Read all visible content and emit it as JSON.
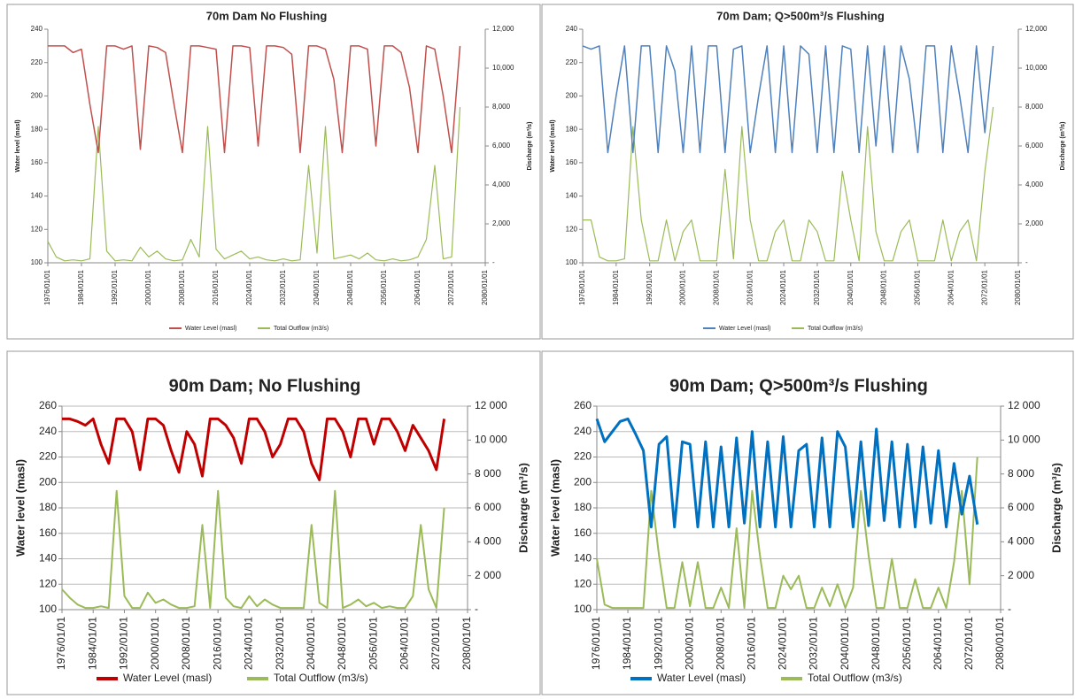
{
  "chart_data": [
    {
      "type": "line",
      "title": "70m Dam No Flushing",
      "y_label": "Water level (masl)",
      "y2_label": "Discharge (m³/s)",
      "grid": false,
      "x": [
        1976,
        1978,
        1980,
        1982,
        1984,
        1986,
        1988,
        1990,
        1992,
        1994,
        1996,
        1998,
        2000,
        2002,
        2004,
        2006,
        2008,
        2010,
        2012,
        2014,
        2016,
        2018,
        2020,
        2022,
        2024,
        2026,
        2028,
        2030,
        2032,
        2034,
        2036,
        2038,
        2040,
        2042,
        2044,
        2046,
        2048,
        2050,
        2052,
        2054,
        2056,
        2058,
        2060,
        2062,
        2064,
        2066,
        2068,
        2070,
        2072,
        2074
      ],
      "xlim": [
        1976,
        2080
      ],
      "xticks": [
        {
          "value": 1976,
          "label": "1976/01/01"
        },
        {
          "value": 1984,
          "label": "1984/01/01"
        },
        {
          "value": 1992,
          "label": "1992/01/01"
        },
        {
          "value": 2000,
          "label": "2000/01/01"
        },
        {
          "value": 2008,
          "label": "2008/01/01"
        },
        {
          "value": 2016,
          "label": "2016/01/01"
        },
        {
          "value": 2024,
          "label": "2024/01/01"
        },
        {
          "value": 2032,
          "label": "2032/01/01"
        },
        {
          "value": 2040,
          "label": "2040/01/01"
        },
        {
          "value": 2048,
          "label": "2048/01/01"
        },
        {
          "value": 2056,
          "label": "2056/01/01"
        },
        {
          "value": 2064,
          "label": "2064/01/01"
        },
        {
          "value": 2072,
          "label": "2072/01/01"
        },
        {
          "value": 2080,
          "label": "2080/01/01"
        }
      ],
      "ylim": [
        100,
        240
      ],
      "yticks": [
        100,
        120,
        140,
        160,
        180,
        200,
        220,
        240
      ],
      "y2lim": [
        0,
        12000
      ],
      "y2ticks": [
        {
          "value": 0,
          "label": "-"
        },
        {
          "value": 2000,
          "label": "2,000"
        },
        {
          "value": 4000,
          "label": "4,000"
        },
        {
          "value": 6000,
          "label": "6,000"
        },
        {
          "value": 8000,
          "label": "8,000"
        },
        {
          "value": 10000,
          "label": "10,000"
        },
        {
          "value": 12000,
          "label": "12,000"
        }
      ],
      "series": [
        {
          "name": "Water Level (masl)",
          "color": "#c0504d",
          "values": [
            230,
            230,
            230,
            226,
            228,
            195,
            166,
            230,
            230,
            228,
            230,
            168,
            230,
            229,
            226,
            195,
            166,
            230,
            230,
            229,
            228,
            166,
            230,
            230,
            229,
            170,
            230,
            230,
            229,
            225,
            166,
            230,
            230,
            228,
            210,
            166,
            230,
            230,
            228,
            170,
            230,
            230,
            226,
            205,
            166,
            230,
            228,
            200,
            166,
            230
          ]
        },
        {
          "name": "Total Outflow (m3/s)",
          "color": "#9bbb59",
          "axis": "y2",
          "values": [
            1100,
            300,
            100,
            150,
            100,
            200,
            7000,
            600,
            100,
            150,
            100,
            800,
            300,
            600,
            200,
            100,
            150,
            1200,
            300,
            7000,
            700,
            200,
            400,
            600,
            200,
            300,
            150,
            100,
            200,
            100,
            150,
            5000,
            500,
            7000,
            200,
            300,
            400,
            200,
            500,
            150,
            100,
            200,
            100,
            150,
            300,
            1200,
            5000,
            200,
            300,
            8000
          ]
        }
      ]
    },
    {
      "type": "line",
      "title": "70m Dam; Q>500m³/s Flushing",
      "y_label": "Water level (masl)",
      "y2_label": "Discharge (m³/s)",
      "grid": false,
      "x": [
        1976,
        1978,
        1980,
        1982,
        1984,
        1986,
        1988,
        1990,
        1992,
        1994,
        1996,
        1998,
        2000,
        2002,
        2004,
        2006,
        2008,
        2010,
        2012,
        2014,
        2016,
        2018,
        2020,
        2022,
        2024,
        2026,
        2028,
        2030,
        2032,
        2034,
        2036,
        2038,
        2040,
        2042,
        2044,
        2046,
        2048,
        2050,
        2052,
        2054,
        2056,
        2058,
        2060,
        2062,
        2064,
        2066,
        2068,
        2070,
        2072,
        2074
      ],
      "xlim": [
        1976,
        2080
      ],
      "xticks": [
        {
          "value": 1976,
          "label": "1976/01/01"
        },
        {
          "value": 1984,
          "label": "1984/01/01"
        },
        {
          "value": 1992,
          "label": "1992/01/01"
        },
        {
          "value": 2000,
          "label": "2000/01/01"
        },
        {
          "value": 2008,
          "label": "2008/01/01"
        },
        {
          "value": 2016,
          "label": "2016/01/01"
        },
        {
          "value": 2024,
          "label": "2024/01/01"
        },
        {
          "value": 2032,
          "label": "2032/01/01"
        },
        {
          "value": 2040,
          "label": "2040/01/01"
        },
        {
          "value": 2048,
          "label": "2048/01/01"
        },
        {
          "value": 2056,
          "label": "2056/01/01"
        },
        {
          "value": 2064,
          "label": "2064/01/01"
        },
        {
          "value": 2072,
          "label": "2072/01/01"
        },
        {
          "value": 2080,
          "label": "2080/01/01"
        }
      ],
      "ylim": [
        100,
        240
      ],
      "yticks": [
        100,
        120,
        140,
        160,
        180,
        200,
        220,
        240
      ],
      "y2lim": [
        0,
        12000
      ],
      "y2ticks": [
        {
          "value": 0,
          "label": "-"
        },
        {
          "value": 2000,
          "label": "2,000"
        },
        {
          "value": 4000,
          "label": "4,000"
        },
        {
          "value": 6000,
          "label": "6,000"
        },
        {
          "value": 8000,
          "label": "8,000"
        },
        {
          "value": 10000,
          "label": "10,000"
        },
        {
          "value": 12000,
          "label": "12,000"
        }
      ],
      "series": [
        {
          "name": "Water Level (masl)",
          "color": "#4f81bd",
          "values": [
            230,
            228,
            230,
            166,
            200,
            230,
            166,
            230,
            230,
            166,
            230,
            215,
            166,
            230,
            166,
            230,
            230,
            166,
            228,
            230,
            166,
            200,
            230,
            166,
            230,
            166,
            230,
            225,
            166,
            230,
            166,
            230,
            228,
            166,
            230,
            170,
            230,
            166,
            230,
            210,
            166,
            230,
            230,
            166,
            230,
            200,
            166,
            230,
            178,
            230
          ]
        },
        {
          "name": "Total Outflow (m3/s)",
          "color": "#9bbb59",
          "axis": "y2",
          "values": [
            2200,
            2200,
            300,
            100,
            100,
            200,
            7000,
            2200,
            100,
            100,
            2200,
            100,
            1600,
            2200,
            100,
            100,
            100,
            4800,
            200,
            7000,
            2200,
            100,
            100,
            1600,
            2200,
            100,
            100,
            2200,
            1600,
            100,
            100,
            4700,
            2200,
            100,
            7000,
            1600,
            100,
            100,
            1600,
            2200,
            100,
            100,
            100,
            2200,
            100,
            1600,
            2200,
            100,
            4700,
            8000
          ]
        }
      ]
    },
    {
      "type": "line",
      "title": "90m Dam; No Flushing",
      "y_label": "Water level (masl)",
      "y2_label": "Discharge (m³/s)",
      "grid": true,
      "x": [
        1976,
        1978,
        1980,
        1982,
        1984,
        1986,
        1988,
        1990,
        1992,
        1994,
        1996,
        1998,
        2000,
        2002,
        2004,
        2006,
        2008,
        2010,
        2012,
        2014,
        2016,
        2018,
        2020,
        2022,
        2024,
        2026,
        2028,
        2030,
        2032,
        2034,
        2036,
        2038,
        2040,
        2042,
        2044,
        2046,
        2048,
        2050,
        2052,
        2054,
        2056,
        2058,
        2060,
        2062,
        2064,
        2066,
        2068,
        2070,
        2072,
        2074
      ],
      "xlim": [
        1976,
        2080
      ],
      "xticks": [
        {
          "value": 1976,
          "label": "1976/01/01"
        },
        {
          "value": 1984,
          "label": "1984/01/01"
        },
        {
          "value": 1992,
          "label": "1992/01/01"
        },
        {
          "value": 2000,
          "label": "2000/01/01"
        },
        {
          "value": 2008,
          "label": "2008/01/01"
        },
        {
          "value": 2016,
          "label": "2016/01/01"
        },
        {
          "value": 2024,
          "label": "2024/01/01"
        },
        {
          "value": 2032,
          "label": "2032/01/01"
        },
        {
          "value": 2040,
          "label": "2040/01/01"
        },
        {
          "value": 2048,
          "label": "2048/01/01"
        },
        {
          "value": 2056,
          "label": "2056/01/01"
        },
        {
          "value": 2064,
          "label": "2064/01/01"
        },
        {
          "value": 2072,
          "label": "2072/01/01"
        },
        {
          "value": 2080,
          "label": "2080/01/01"
        }
      ],
      "ylim": [
        100,
        260
      ],
      "yticks": [
        100,
        120,
        140,
        160,
        180,
        200,
        220,
        240,
        260
      ],
      "y2lim": [
        0,
        12000
      ],
      "y2ticks": [
        {
          "value": 0,
          "label": "-"
        },
        {
          "value": 2000,
          "label": "2 000"
        },
        {
          "value": 4000,
          "label": "4 000"
        },
        {
          "value": 6000,
          "label": "6 000"
        },
        {
          "value": 8000,
          "label": "8 000"
        },
        {
          "value": 10000,
          "label": "10 000"
        },
        {
          "value": 12000,
          "label": "12 000"
        }
      ],
      "series": [
        {
          "name": "Water Level (masl)",
          "color": "#c00000",
          "values": [
            250,
            250,
            248,
            245,
            250,
            230,
            215,
            250,
            250,
            240,
            210,
            250,
            250,
            245,
            225,
            208,
            240,
            230,
            205,
            250,
            250,
            245,
            235,
            215,
            250,
            250,
            240,
            220,
            230,
            250,
            250,
            240,
            215,
            202,
            250,
            250,
            240,
            220,
            250,
            250,
            230,
            250,
            250,
            240,
            225,
            245,
            235,
            225,
            210,
            250
          ]
        },
        {
          "name": "Total Outflow (m3/s)",
          "color": "#9bbb59",
          "axis": "y2",
          "values": [
            1200,
            700,
            300,
            100,
            100,
            200,
            100,
            7000,
            800,
            100,
            100,
            1000,
            400,
            600,
            300,
            100,
            100,
            200,
            5000,
            100,
            7000,
            700,
            200,
            100,
            800,
            200,
            600,
            300,
            100,
            100,
            100,
            100,
            5000,
            400,
            100,
            7000,
            100,
            300,
            600,
            200,
            400,
            100,
            200,
            100,
            100,
            800,
            5000,
            1200,
            100,
            6000
          ]
        }
      ]
    },
    {
      "type": "line",
      "title": "90m Dam; Q>500m³/s Flushing",
      "y_label": "Water level (masl)",
      "y2_label": "Discharge (m³/s)",
      "grid": true,
      "x": [
        1976,
        1978,
        1980,
        1982,
        1984,
        1986,
        1988,
        1990,
        1992,
        1994,
        1996,
        1998,
        2000,
        2002,
        2004,
        2006,
        2008,
        2010,
        2012,
        2014,
        2016,
        2018,
        2020,
        2022,
        2024,
        2026,
        2028,
        2030,
        2032,
        2034,
        2036,
        2038,
        2040,
        2042,
        2044,
        2046,
        2048,
        2050,
        2052,
        2054,
        2056,
        2058,
        2060,
        2062,
        2064,
        2066,
        2068,
        2070,
        2072,
        2074
      ],
      "xlim": [
        1976,
        2080
      ],
      "xticks": [
        {
          "value": 1976,
          "label": "1976/01/01"
        },
        {
          "value": 1984,
          "label": "1984/01/01"
        },
        {
          "value": 1992,
          "label": "1992/01/01"
        },
        {
          "value": 2000,
          "label": "2000/01/01"
        },
        {
          "value": 2008,
          "label": "2008/01/01"
        },
        {
          "value": 2016,
          "label": "2016/01/01"
        },
        {
          "value": 2024,
          "label": "2024/01/01"
        },
        {
          "value": 2032,
          "label": "2032/01/01"
        },
        {
          "value": 2040,
          "label": "2040/01/01"
        },
        {
          "value": 2048,
          "label": "2048/01/01"
        },
        {
          "value": 2056,
          "label": "2056/01/01"
        },
        {
          "value": 2064,
          "label": "2064/01/01"
        },
        {
          "value": 2072,
          "label": "2072/01/01"
        },
        {
          "value": 2080,
          "label": "2080/01/01"
        }
      ],
      "ylim": [
        100,
        260
      ],
      "yticks": [
        100,
        120,
        140,
        160,
        180,
        200,
        220,
        240,
        260
      ],
      "y2lim": [
        0,
        12000
      ],
      "y2ticks": [
        {
          "value": 0,
          "label": "-"
        },
        {
          "value": 2000,
          "label": "2 000"
        },
        {
          "value": 4000,
          "label": "4 000"
        },
        {
          "value": 6000,
          "label": "6 000"
        },
        {
          "value": 8000,
          "label": "8 000"
        },
        {
          "value": 10000,
          "label": "10 000"
        },
        {
          "value": 12000,
          "label": "12 000"
        }
      ],
      "series": [
        {
          "name": "Water Level (masl)",
          "color": "#0070c0",
          "values": [
            250,
            232,
            240,
            248,
            250,
            238,
            225,
            165,
            230,
            236,
            165,
            232,
            230,
            165,
            232,
            165,
            228,
            165,
            235,
            168,
            240,
            165,
            232,
            165,
            236,
            165,
            225,
            230,
            165,
            235,
            165,
            240,
            228,
            165,
            232,
            166,
            242,
            170,
            232,
            165,
            230,
            165,
            228,
            168,
            225,
            165,
            215,
            175,
            205,
            167
          ]
        },
        {
          "name": "Total Outflow (m3/s)",
          "color": "#9bbb59",
          "axis": "y2",
          "values": [
            3000,
            300,
            100,
            100,
            100,
            100,
            100,
            7000,
            3200,
            100,
            100,
            2800,
            200,
            2800,
            100,
            100,
            1300,
            100,
            4800,
            100,
            7000,
            3200,
            100,
            100,
            2000,
            1200,
            2000,
            100,
            100,
            1300,
            200,
            1500,
            100,
            1300,
            7000,
            3200,
            100,
            100,
            3000,
            100,
            100,
            1800,
            100,
            100,
            1300,
            100,
            2800,
            7000,
            1500,
            9000
          ]
        }
      ]
    }
  ]
}
